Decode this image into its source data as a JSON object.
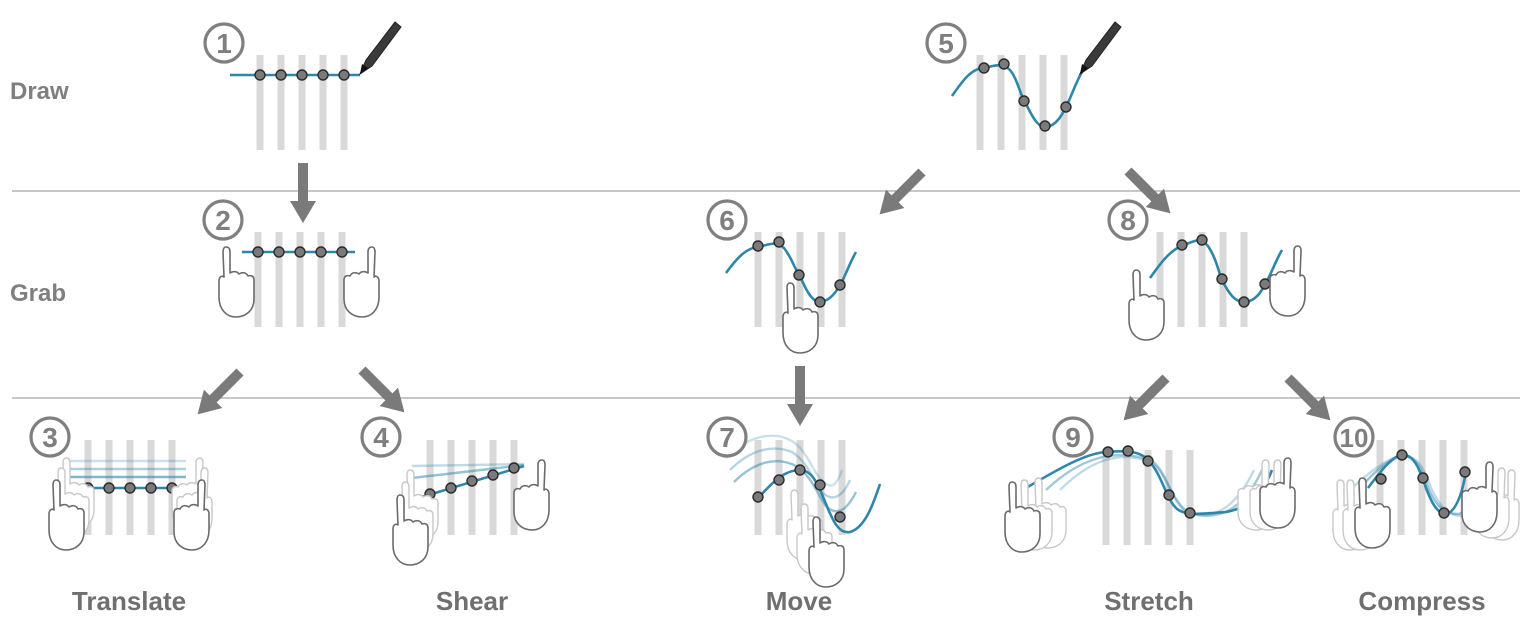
{
  "rows": {
    "draw": "Draw",
    "grab": "Grab"
  },
  "steps": [
    "1",
    "2",
    "3",
    "4",
    "5",
    "6",
    "7",
    "8",
    "9",
    "10"
  ],
  "operations": {
    "translate": "Translate",
    "shear": "Shear",
    "move": "Move",
    "stretch": "Stretch",
    "compress": "Compress"
  },
  "colors": {
    "curve": "#2e86ab",
    "bars": "#d9d9d9",
    "text": "#7f7f7f",
    "arrow": "#7a7a7a"
  },
  "icons": [
    "pen-icon",
    "hand-icon",
    "arrow-icon"
  ]
}
